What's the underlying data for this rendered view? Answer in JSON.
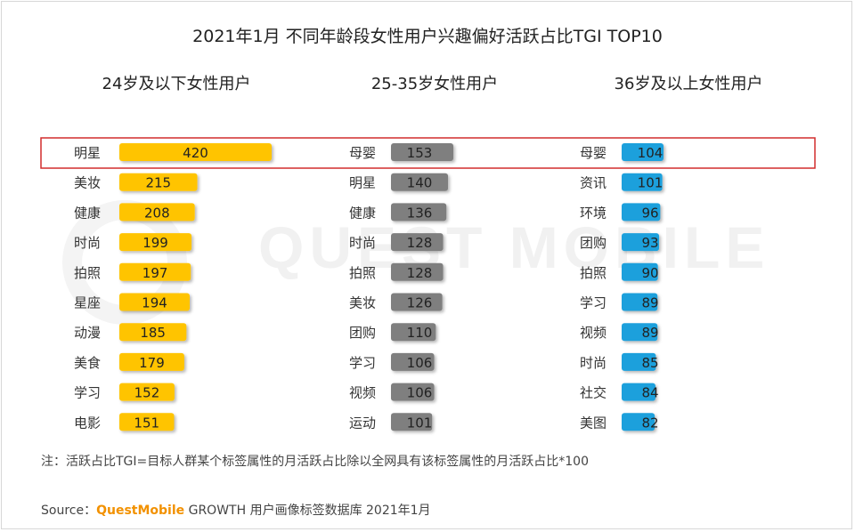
{
  "title": "2021年1月 不同年龄段女性用户兴趣偏好活跃占比TGI TOP10",
  "watermark": "QUEST MOBILE",
  "note": "注：活跃占比TGI=目标人群某个标签属性的月活跃占比除以全网具有该标签属性的月活跃占比*100",
  "source": {
    "prefix": "Source：",
    "brand": "QuestMobile",
    "rest": " GROWTH 用户画像标签数据库 2021年1月"
  },
  "colors": {
    "panel0": "#ffc400",
    "panel1": "#7f7f7f",
    "panel2": "#1fa0dc",
    "highlight": "#d22d2d"
  },
  "chart_data": [
    {
      "type": "bar",
      "title": "24岁及以下女性用户",
      "categories": [
        "明星",
        "美妆",
        "健康",
        "时尚",
        "拍照",
        "星座",
        "动漫",
        "美食",
        "学习",
        "电影"
      ],
      "values": [
        420,
        215,
        208,
        199,
        197,
        194,
        185,
        179,
        152,
        151
      ]
    },
    {
      "type": "bar",
      "title": "25-35岁女性用户",
      "categories": [
        "母婴",
        "明星",
        "健康",
        "时尚",
        "拍照",
        "美妆",
        "团购",
        "学习",
        "视频",
        "运动"
      ],
      "values": [
        153,
        140,
        136,
        128,
        128,
        126,
        110,
        106,
        106,
        101
      ]
    },
    {
      "type": "bar",
      "title": "36岁及以上女性用户",
      "categories": [
        "母婴",
        "资讯",
        "环境",
        "团购",
        "拍照",
        "学习",
        "视频",
        "时尚",
        "社交",
        "美图"
      ],
      "values": [
        104,
        101,
        96,
        93,
        90,
        89,
        89,
        85,
        84,
        82
      ]
    }
  ]
}
